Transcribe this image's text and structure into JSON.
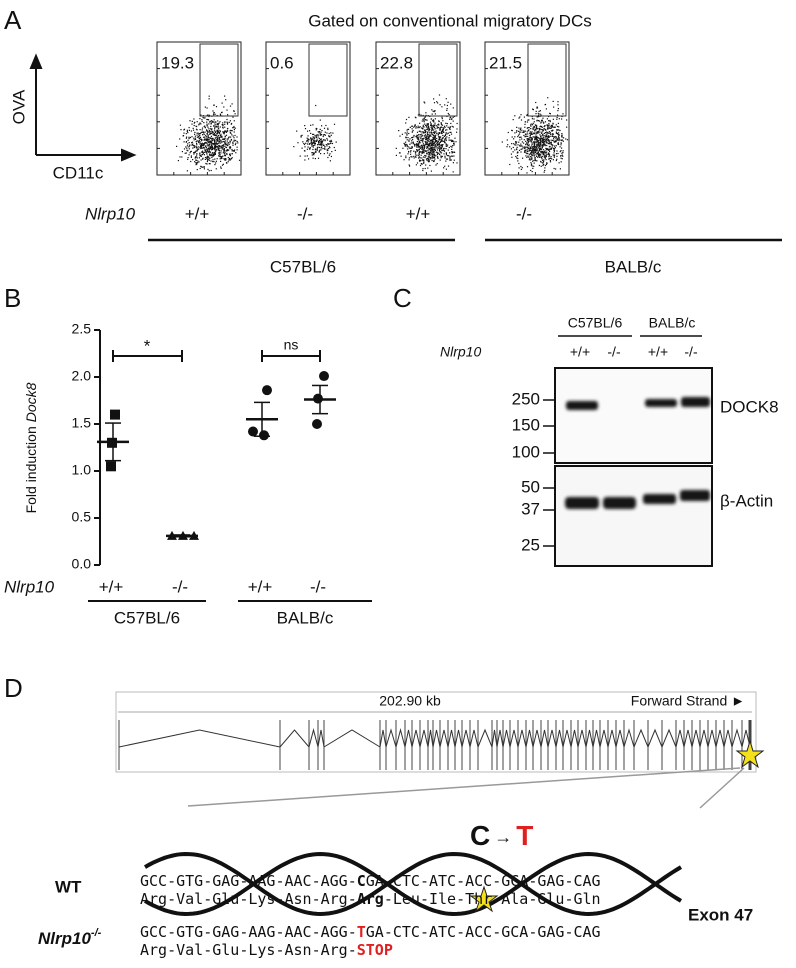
{
  "panel_a": {
    "label": "A",
    "title": "Gated on conventional migratory DCs",
    "y_axis": "OVA",
    "x_axis": "CD11c",
    "gate_percentages": [
      "19.3",
      "0.6",
      "22.8",
      "21.5"
    ],
    "genotype_label": "Nlrp10",
    "genotypes": [
      "+/+",
      "-/-",
      "+/+",
      "-/-"
    ],
    "strains": [
      "C57BL/6",
      "BALB/c"
    ]
  },
  "chart_data": {
    "type": "dot",
    "panel_label": "B",
    "y_label": "Fold induction",
    "y_label_gene": "Dock8",
    "ylim": [
      0,
      2.5
    ],
    "yticks": [
      {
        "value": 0,
        "label": "0.0"
      },
      {
        "value": 0.5,
        "label": "0.5"
      },
      {
        "value": 1,
        "label": "1.0"
      },
      {
        "value": 1.5,
        "label": "1.5"
      },
      {
        "value": 2,
        "label": "2.0"
      },
      {
        "value": 2.5,
        "label": "2.5"
      }
    ],
    "categories": [
      "+/+",
      "-/-",
      "+/+",
      "-/-"
    ],
    "genotype_label": "Nlrp10",
    "strains": [
      "C57BL/6",
      "BALB/c"
    ],
    "significance": [
      "*",
      "ns"
    ],
    "groups": [
      {
        "marker": "square",
        "values": [
          1.6,
          1.3,
          1.05
        ],
        "mean": 1.31,
        "sem": 0.2
      },
      {
        "marker": "triangle",
        "values": [
          0.31,
          0.31,
          0.31
        ],
        "mean": 0.31,
        "sem": 0.01
      },
      {
        "marker": "circle",
        "values": [
          1.86,
          1.42,
          1.38
        ],
        "mean": 1.55,
        "sem": 0.18
      },
      {
        "marker": "circle",
        "values": [
          2.01,
          1.77,
          1.5
        ],
        "mean": 1.76,
        "sem": 0.15
      }
    ]
  },
  "panel_c": {
    "label": "C",
    "strains": [
      "C57BL/6",
      "BALB/c"
    ],
    "genotype_label": "Nlrp10",
    "genotypes": [
      "+/+",
      "-/-",
      "+/+",
      "-/-"
    ],
    "markers_top": [
      "250",
      "150",
      "100"
    ],
    "markers_bottom": [
      "50",
      "37",
      "25"
    ],
    "protein_top": "DOCK8",
    "protein_bottom": "β-Actin"
  },
  "panel_d": {
    "label": "D",
    "gene_length": "202.90 kb",
    "strand": "Forward Strand ►",
    "mutation_from": "C",
    "mutation_arrow": "→",
    "mutation_to": "T",
    "exon": "Exon 47",
    "wt": {
      "label": "WT",
      "dna": [
        "GCC-GTG-GAG-AAG-AAC-AGG-",
        "C",
        "GA-CTC-ATC-ACC-GCA-GAG-CAG"
      ],
      "protein": [
        "Arg-Val-Glu-Lys-Asn-Arg-",
        "Arg",
        "-Leu-Ile-Thr-Ala-Glu-Gln"
      ]
    },
    "mutant": {
      "label": "Nlrp10",
      "label_sup": "-/-",
      "dna": [
        "GCC-GTG-GAG-AAG-AAC-AGG-",
        "T",
        "GA-CTC-ATC-ACC-GCA-GAG-CAG"
      ],
      "protein": [
        "Arg-Val-Glu-Lys-Asn-Arg-",
        "STOP"
      ]
    }
  }
}
